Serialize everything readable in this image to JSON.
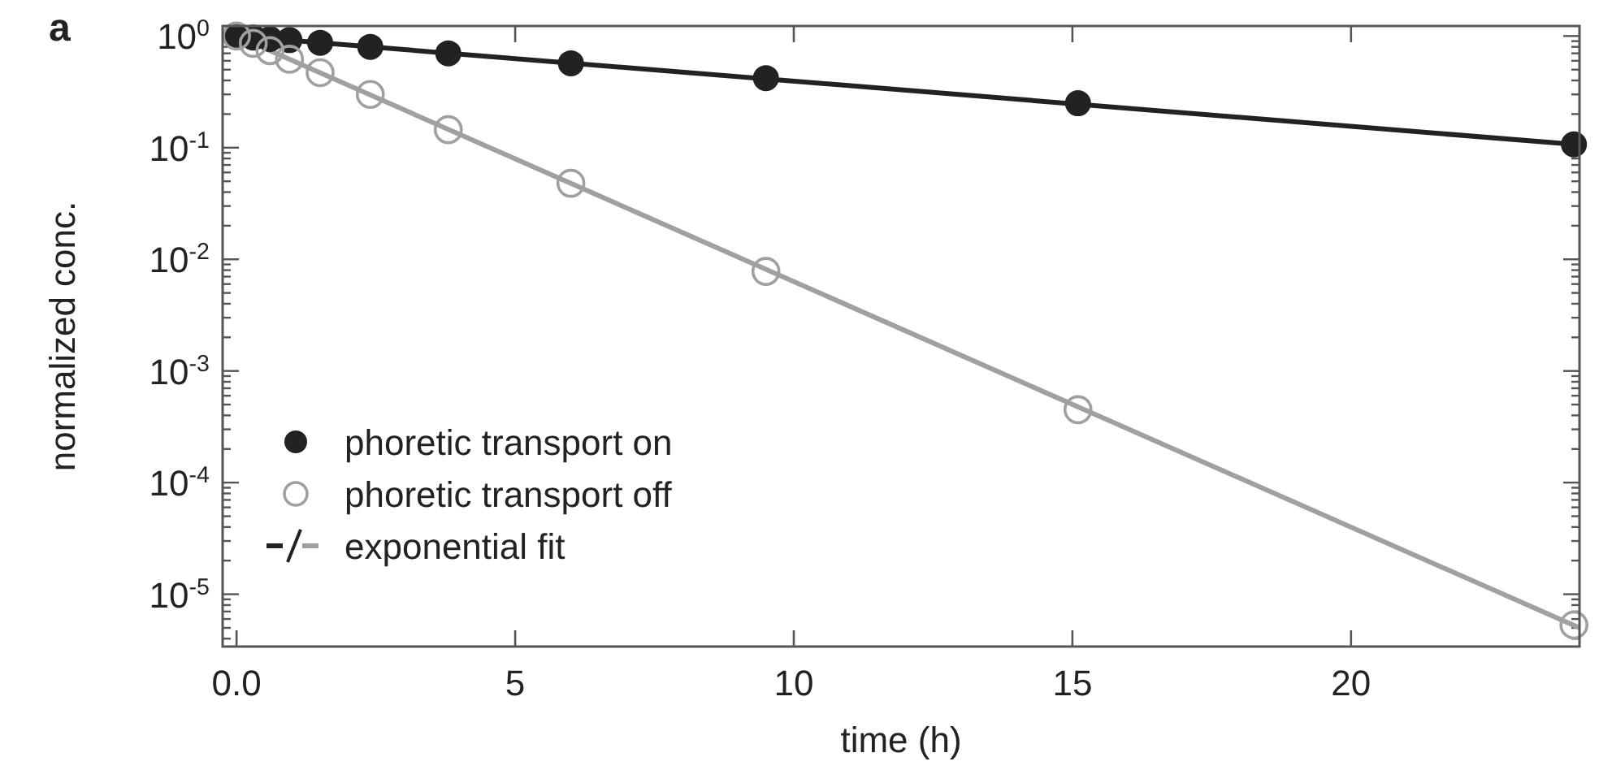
{
  "chart_data": {
    "type": "scatter",
    "xlabel": "time (h)",
    "ylabel": "normalized conc.",
    "annotations": [
      "a"
    ],
    "log": "y",
    "xlim": [
      -0.25,
      24.1
    ],
    "ylim": [
      3.4e-06,
      1.23
    ],
    "xticks": [
      {
        "value": 0,
        "label": "0.0"
      },
      5,
      10,
      15,
      20
    ],
    "yticks": [
      {
        "value": 1,
        "label": "10$^{0}$"
      },
      {
        "value": 0.1,
        "label": "10$^{-1}$"
      },
      {
        "value": 0.01,
        "label": "10$^{-2}$"
      },
      {
        "value": 0.001,
        "label": "10$^{-3}$"
      },
      {
        "value": 0.0001,
        "label": "10$^{-4}$"
      },
      {
        "value": 1e-05,
        "label": "10$^{-5}$"
      },
      {
        "value": 0.9,
        "label": null
      },
      {
        "value": 0.8,
        "label": null
      },
      {
        "value": 0.7,
        "label": null
      },
      {
        "value": 0.6,
        "label": null
      },
      {
        "value": 0.5,
        "label": null
      },
      {
        "value": 0.4,
        "label": null
      },
      {
        "value": 0.3,
        "label": null
      },
      {
        "value": 0.2,
        "label": null
      },
      {
        "value": 0.09,
        "label": null
      },
      {
        "value": 0.08,
        "label": null
      },
      {
        "value": 0.07,
        "label": null
      },
      {
        "value": 0.06,
        "label": null
      },
      {
        "value": 0.05,
        "label": null
      },
      {
        "value": 0.04,
        "label": null
      },
      {
        "value": 0.03,
        "label": null
      },
      {
        "value": 0.02,
        "label": null
      },
      {
        "value": 0.009,
        "label": null
      },
      {
        "value": 0.008,
        "label": null
      },
      {
        "value": 0.007,
        "label": null
      },
      {
        "value": 0.006,
        "label": null
      },
      {
        "value": 0.005,
        "label": null
      },
      {
        "value": 0.004,
        "label": null
      },
      {
        "value": 0.003,
        "label": null
      },
      {
        "value": 0.002,
        "label": null
      },
      {
        "value": 0.0009,
        "label": null
      },
      {
        "value": 0.0008,
        "label": null
      },
      {
        "value": 0.0007,
        "label": null
      },
      {
        "value": 0.0006,
        "label": null
      },
      {
        "value": 0.0005,
        "label": null
      },
      {
        "value": 0.0004,
        "label": null
      },
      {
        "value": 0.0003,
        "label": null
      },
      {
        "value": 0.0002,
        "label": null
      },
      {
        "value": 9e-05,
        "label": null
      },
      {
        "value": 8e-05,
        "label": null
      },
      {
        "value": 7e-05,
        "label": null
      },
      {
        "value": 6e-05,
        "label": null
      },
      {
        "value": 5e-05,
        "label": null
      },
      {
        "value": 4e-05,
        "label": null
      },
      {
        "value": 3e-05,
        "label": null
      },
      {
        "value": 2e-05,
        "label": null
      },
      {
        "value": 9e-06,
        "label": null
      },
      {
        "value": 8e-06,
        "label": null
      },
      {
        "value": 7e-06,
        "label": null
      },
      {
        "value": 6e-06,
        "label": null
      },
      {
        "value": 5e-06,
        "label": null
      },
      {
        "value": 4e-06,
        "label": null
      }
    ],
    "grid": false,
    "legend": "bottom left",
    "marker": "circle",
    "series": [
      {
        "type": "line",
        "name": "exponential fit",
        "color": "#222222",
        "x": [
          0,
          24.1
        ],
        "values": [
          1.0,
          0.106
        ],
        "marker": "none"
      },
      {
        "type": "line",
        "color": "#a0a0a0",
        "x": [
          0,
          24.1
        ],
        "values": [
          1.0,
          5e-06
        ],
        "marker": "none"
      },
      {
        "name": "phoretic transport on",
        "color": "#222222",
        "x": [
          0,
          0.3,
          0.6,
          0.95,
          1.5,
          2.4,
          3.8,
          6.0,
          9.5,
          15.1,
          24.0
        ],
        "values": [
          1.0,
          0.97,
          0.94,
          0.92,
          0.87,
          0.8,
          0.7,
          0.57,
          0.42,
          0.25,
          0.107
        ]
      },
      {
        "name": "phoretic transport off",
        "color": "#a0a0a0",
        "x": [
          0,
          0.3,
          0.6,
          0.95,
          1.5,
          2.4,
          3.8,
          6.0,
          9.5,
          15.1,
          24.0
        ],
        "values": [
          1.0,
          0.86,
          0.74,
          0.62,
          0.47,
          0.3,
          0.145,
          0.048,
          0.0078,
          0.00045,
          5.3e-06
        ]
      }
    ]
  }
}
